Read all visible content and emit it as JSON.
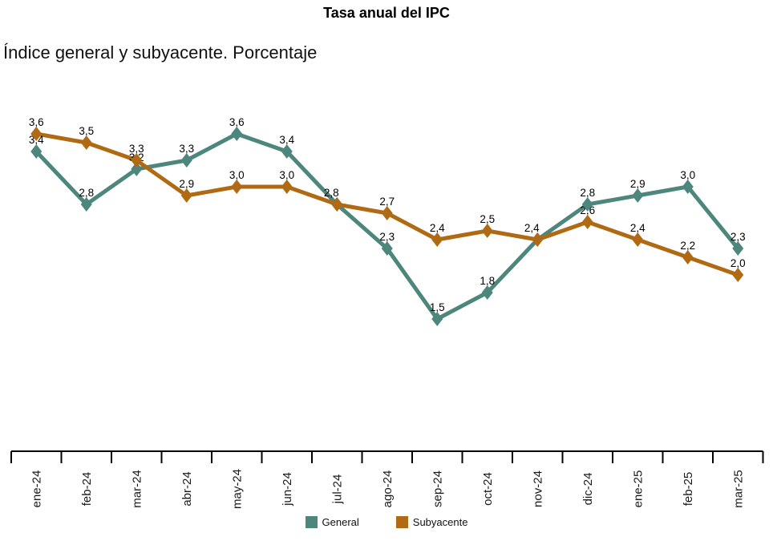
{
  "page": {
    "title": "Tasa anual del IPC",
    "subtitle": "Índice general y subyacente. Porcentaje"
  },
  "chart_data": {
    "type": "line",
    "title": "Tasa anual del IPC",
    "subtitle": "Índice general y subyacente. Porcentaje",
    "categories": [
      "ene-24",
      "feb-24",
      "mar-24",
      "abr-24",
      "may-24",
      "jun-24",
      "jul-24",
      "ago-24",
      "sep-24",
      "oct-24",
      "nov-24",
      "dic-24",
      "ene-25",
      "feb-25",
      "mar-25"
    ],
    "series": [
      {
        "name": "General",
        "color": "#4d867c",
        "values": [
          3.4,
          2.8,
          3.2,
          3.3,
          3.6,
          3.4,
          2.8,
          2.3,
          1.5,
          1.8,
          2.4,
          2.8,
          2.9,
          3.0,
          2.3
        ]
      },
      {
        "name": "Subyacente",
        "color": "#b06a14",
        "values": [
          3.6,
          3.5,
          3.3,
          2.9,
          3.0,
          3.0,
          2.8,
          2.7,
          2.4,
          2.5,
          2.4,
          2.6,
          2.4,
          2.2,
          2.0
        ]
      }
    ],
    "marker": "diamond",
    "value_labels": "decimal-comma",
    "xlabel": "",
    "ylabel": "",
    "ylim": [
      0,
      4.2
    ],
    "grid": false,
    "y_axis_shown": false,
    "legend_position": "bottom"
  },
  "legend": {
    "items": [
      {
        "label": "General",
        "color": "#4d867c"
      },
      {
        "label": "Subyacente",
        "color": "#b06a14"
      }
    ]
  }
}
